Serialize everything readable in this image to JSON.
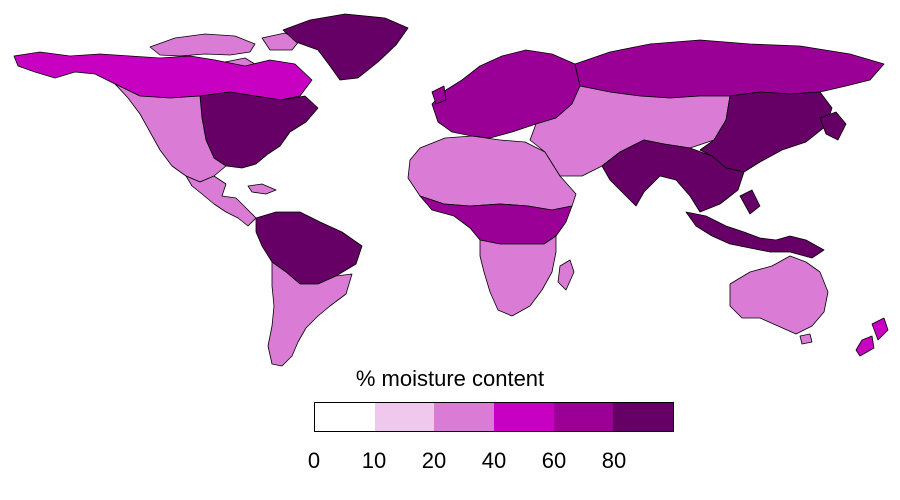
{
  "legend": {
    "title": "% moisture content",
    "bins": [
      {
        "from": 0,
        "to": 10,
        "color": "#ffffff"
      },
      {
        "from": 10,
        "to": 20,
        "color": "#f0c8ee"
      },
      {
        "from": 20,
        "to": 40,
        "color": "#da7cd6"
      },
      {
        "from": 40,
        "to": 60,
        "color": "#c800c2"
      },
      {
        "from": 60,
        "to": 80,
        "color": "#9a0096"
      },
      {
        "from": 80,
        "to": 100,
        "color": "#660066"
      }
    ],
    "tick_labels": [
      "0",
      "10",
      "20",
      "40",
      "60",
      "80"
    ]
  },
  "map": {
    "projection": "equirectangular",
    "extent": "world",
    "land_outline_color": "#000000",
    "water_color": "#ffffff",
    "regions": [
      {
        "name": "Greenland",
        "level": 80
      },
      {
        "name": "Canadian Arctic",
        "level": 30
      },
      {
        "name": "Northern Canada",
        "level": 45
      },
      {
        "name": "Eastern North America",
        "level": 85
      },
      {
        "name": "Western United States",
        "level": 25
      },
      {
        "name": "Central America",
        "level": 35
      },
      {
        "name": "Amazon Basin",
        "level": 85
      },
      {
        "name": "Southern South America",
        "level": 25
      },
      {
        "name": "Sahara",
        "level": 25
      },
      {
        "name": "Central Africa",
        "level": 75
      },
      {
        "name": "Southern Africa",
        "level": 25
      },
      {
        "name": "Europe",
        "level": 65
      },
      {
        "name": "Siberia",
        "level": 75
      },
      {
        "name": "Central Asia",
        "level": 25
      },
      {
        "name": "Eastern China",
        "level": 85
      },
      {
        "name": "Southeast Asia",
        "level": 85
      },
      {
        "name": "Australia",
        "level": 25
      },
      {
        "name": "New Zealand",
        "level": 45
      }
    ]
  }
}
